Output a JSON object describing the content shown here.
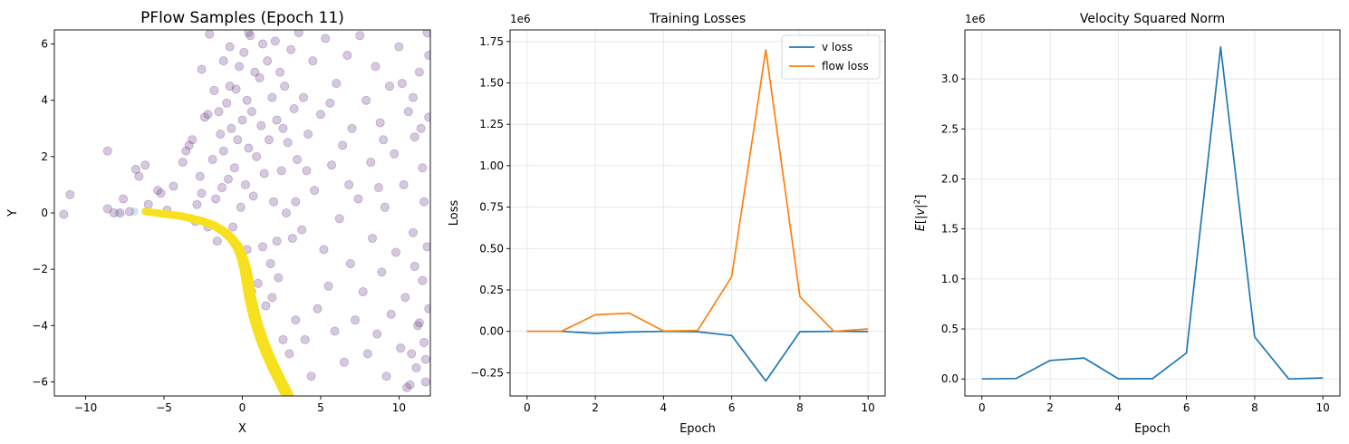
{
  "chart_data": [
    {
      "type": "scatter",
      "title": "PFlow Samples (Epoch 11)",
      "xlabel": "X",
      "ylabel": "Y",
      "xlim": [
        -12,
        12
      ],
      "ylim": [
        -6.5,
        6.5
      ],
      "xticks": [
        -10,
        -5,
        0,
        5,
        10
      ],
      "xtick_labels": [
        "−10",
        "−5",
        "0",
        "5",
        "10"
      ],
      "yticks": [
        -6,
        -4,
        -2,
        0,
        2,
        4,
        6
      ],
      "ytick_labels": [
        "−6",
        "−4",
        "−2",
        "0",
        "2",
        "4",
        "6"
      ],
      "grid": false,
      "colors": {
        "samples": "#6a3d8a",
        "trajectory": "#f7e01f",
        "early": "#8ea6c6"
      },
      "trajectory_points": [
        [
          -6.2,
          0.05
        ],
        [
          -5.5,
          0.0
        ],
        [
          -4.8,
          -0.05
        ],
        [
          -4.0,
          -0.1
        ],
        [
          -3.2,
          -0.2
        ],
        [
          -2.5,
          -0.3
        ],
        [
          -1.8,
          -0.45
        ],
        [
          -1.2,
          -0.65
        ],
        [
          -0.7,
          -0.9
        ],
        [
          -0.3,
          -1.2
        ],
        [
          0.0,
          -1.6
        ],
        [
          0.2,
          -2.0
        ],
        [
          0.35,
          -2.5
        ],
        [
          0.5,
          -3.0
        ],
        [
          0.7,
          -3.5
        ],
        [
          0.95,
          -4.0
        ],
        [
          1.25,
          -4.5
        ],
        [
          1.6,
          -5.0
        ],
        [
          2.0,
          -5.5
        ],
        [
          2.45,
          -6.0
        ],
        [
          2.9,
          -6.5
        ],
        [
          3.3,
          -7.0
        ]
      ],
      "scatter_points": [
        [
          -11.4,
          -0.05
        ],
        [
          -11.0,
          0.65
        ],
        [
          -8.6,
          0.15
        ],
        [
          -8.6,
          2.2
        ],
        [
          -8.2,
          0.0
        ],
        [
          -7.8,
          0.0
        ],
        [
          -7.6,
          0.5
        ],
        [
          -7.2,
          0.05
        ],
        [
          -6.8,
          1.55
        ],
        [
          -6.6,
          1.3
        ],
        [
          -6.2,
          1.7
        ],
        [
          -6.0,
          0.3
        ],
        [
          -5.4,
          0.8
        ],
        [
          -5.2,
          0.7
        ],
        [
          -4.8,
          0.1
        ],
        [
          -4.4,
          0.95
        ],
        [
          -3.8,
          1.8
        ],
        [
          -3.6,
          2.2
        ],
        [
          -3.4,
          2.4
        ],
        [
          -3.2,
          2.6
        ],
        [
          -2.9,
          0.3
        ],
        [
          -2.7,
          1.3
        ],
        [
          -2.6,
          0.7
        ],
        [
          -2.4,
          3.4
        ],
        [
          -2.2,
          3.5
        ],
        [
          -2.1,
          6.35
        ],
        [
          -1.9,
          1.9
        ],
        [
          -1.8,
          4.35
        ],
        [
          -1.7,
          0.5
        ],
        [
          -1.5,
          3.6
        ],
        [
          -1.4,
          2.8
        ],
        [
          -1.3,
          0.9
        ],
        [
          -1.2,
          2.2
        ],
        [
          -1.0,
          3.9
        ],
        [
          -0.9,
          1.2
        ],
        [
          -0.8,
          4.5
        ],
        [
          -0.7,
          3.0
        ],
        [
          -0.6,
          -0.5
        ],
        [
          -0.5,
          1.6
        ],
        [
          -0.4,
          4.4
        ],
        [
          -0.3,
          2.6
        ],
        [
          -0.2,
          5.2
        ],
        [
          -0.1,
          0.2
        ],
        [
          0.0,
          3.3
        ],
        [
          0.1,
          5.7
        ],
        [
          0.2,
          1.0
        ],
        [
          0.3,
          4.0
        ],
        [
          0.4,
          2.3
        ],
        [
          0.5,
          6.3
        ],
        [
          0.6,
          3.6
        ],
        [
          0.7,
          0.6
        ],
        [
          0.8,
          5.0
        ],
        [
          0.9,
          2.0
        ],
        [
          1.0,
          -2.5
        ],
        [
          1.1,
          4.8
        ],
        [
          1.2,
          3.1
        ],
        [
          1.3,
          6.0
        ],
        [
          1.4,
          1.4
        ],
        [
          1.5,
          -3.3
        ],
        [
          1.6,
          5.4
        ],
        [
          1.7,
          2.6
        ],
        [
          1.8,
          -1.8
        ],
        [
          1.9,
          4.1
        ],
        [
          2.0,
          0.4
        ],
        [
          2.1,
          6.1
        ],
        [
          2.2,
          3.3
        ],
        [
          2.3,
          -2.3
        ],
        [
          2.4,
          5.0
        ],
        [
          2.5,
          1.5
        ],
        [
          2.6,
          -4.5
        ],
        [
          2.7,
          4.5
        ],
        [
          2.8,
          0.0
        ],
        [
          2.9,
          2.5
        ],
        [
          3.0,
          -5.0
        ],
        [
          3.1,
          5.8
        ],
        [
          3.2,
          -0.9
        ],
        [
          3.3,
          3.7
        ],
        [
          3.4,
          -3.8
        ],
        [
          3.5,
          1.9
        ],
        [
          3.6,
          6.4
        ],
        [
          3.8,
          -0.6
        ],
        [
          3.9,
          4.1
        ],
        [
          4.0,
          -4.5
        ],
        [
          4.2,
          2.8
        ],
        [
          4.4,
          -5.8
        ],
        [
          4.5,
          5.4
        ],
        [
          4.6,
          0.8
        ],
        [
          4.8,
          -3.4
        ],
        [
          5.0,
          3.5
        ],
        [
          5.2,
          -1.3
        ],
        [
          5.3,
          6.2
        ],
        [
          5.5,
          -2.6
        ],
        [
          5.7,
          1.7
        ],
        [
          5.9,
          -4.2
        ],
        [
          6.0,
          4.6
        ],
        [
          6.2,
          -0.2
        ],
        [
          6.4,
          2.4
        ],
        [
          6.5,
          -5.3
        ],
        [
          6.7,
          5.6
        ],
        [
          6.9,
          -1.8
        ],
        [
          7.0,
          3.0
        ],
        [
          7.2,
          -3.8
        ],
        [
          7.4,
          0.5
        ],
        [
          7.5,
          6.3
        ],
        [
          7.7,
          -2.8
        ],
        [
          7.9,
          4.0
        ],
        [
          8.0,
          -5.0
        ],
        [
          8.2,
          1.8
        ],
        [
          8.3,
          -0.9
        ],
        [
          8.5,
          5.2
        ],
        [
          8.6,
          -4.3
        ],
        [
          8.8,
          3.2
        ],
        [
          8.9,
          -2.1
        ],
        [
          9.1,
          0.2
        ],
        [
          9.2,
          -5.8
        ],
        [
          9.4,
          4.5
        ],
        [
          9.5,
          -3.6
        ],
        [
          9.7,
          2.1
        ],
        [
          9.8,
          -1.4
        ],
        [
          10.0,
          5.9
        ],
        [
          10.1,
          -4.8
        ],
        [
          10.3,
          1.0
        ],
        [
          10.4,
          -3.0
        ],
        [
          10.6,
          3.6
        ],
        [
          10.7,
          -6.1
        ],
        [
          10.9,
          -0.7
        ],
        [
          11.0,
          2.7
        ],
        [
          11.2,
          -4.0
        ],
        [
          11.3,
          5.0
        ],
        [
          11.5,
          -2.4
        ],
        [
          11.6,
          0.4
        ],
        [
          11.7,
          -5.2
        ],
        [
          11.8,
          6.4
        ],
        [
          11.9,
          -3.4
        ],
        [
          11.3,
          -3.9
        ],
        [
          11.6,
          -4.6
        ],
        [
          11.1,
          -5.5
        ],
        [
          11.8,
          -1.2
        ],
        [
          10.8,
          -5.0
        ],
        [
          11.5,
          1.6
        ],
        [
          11.9,
          3.4
        ],
        [
          10.5,
          -6.2
        ],
        [
          11.0,
          -1.9
        ],
        [
          11.7,
          -6.0
        ],
        [
          -3.0,
          -0.3
        ],
        [
          -2.2,
          -0.5
        ],
        [
          -1.6,
          -1.0
        ],
        [
          -0.9,
          -0.8
        ],
        [
          0.3,
          -1.3
        ],
        [
          0.6,
          -2.8
        ],
        [
          1.3,
          -1.2
        ],
        [
          1.9,
          -3.0
        ],
        [
          2.2,
          -1.0
        ],
        [
          -0.8,
          5.9
        ],
        [
          0.4,
          6.4
        ],
        [
          -2.6,
          5.1
        ],
        [
          -1.2,
          5.4
        ],
        [
          2.6,
          3.0
        ],
        [
          3.4,
          0.4
        ],
        [
          4.1,
          1.5
        ],
        [
          5.6,
          3.9
        ],
        [
          6.8,
          1.0
        ],
        [
          8.7,
          0.9
        ],
        [
          9.0,
          2.6
        ],
        [
          10.2,
          4.6
        ],
        [
          10.9,
          4.1
        ],
        [
          11.4,
          3.0
        ],
        [
          11.9,
          5.6
        ]
      ]
    },
    {
      "type": "line",
      "title": "Training Losses",
      "xlabel": "Epoch",
      "ylabel": "Loss",
      "scale_label": "1e6",
      "x": [
        0,
        1,
        2,
        3,
        4,
        5,
        6,
        7,
        8,
        9,
        10
      ],
      "series": [
        {
          "name": "v loss",
          "color": "#1f77b4",
          "values": [
            0.0,
            0.0,
            -0.012,
            -0.004,
            0.0,
            -0.002,
            -0.025,
            -0.3,
            -0.002,
            0.0,
            -0.001
          ]
        },
        {
          "name": "flow loss",
          "color": "#ff7f0e",
          "values": [
            0.0,
            0.0,
            0.1,
            0.11,
            0.002,
            0.005,
            0.33,
            1.7,
            0.21,
            0.0,
            0.015
          ]
        }
      ],
      "xlim": [
        -0.5,
        10.5
      ],
      "ylim": [
        -0.39,
        1.82
      ],
      "xticks": [
        0,
        2,
        4,
        6,
        8,
        10
      ],
      "xtick_labels": [
        "0",
        "2",
        "4",
        "6",
        "8",
        "10"
      ],
      "yticks": [
        -0.25,
        0.0,
        0.25,
        0.5,
        0.75,
        1.0,
        1.25,
        1.5,
        1.75
      ],
      "ytick_labels": [
        "−0.25",
        "0.00",
        "0.25",
        "0.50",
        "0.75",
        "1.00",
        "1.25",
        "1.50",
        "1.75"
      ],
      "grid": true,
      "legend": "top-right"
    },
    {
      "type": "line",
      "title": "Velocity Squared Norm",
      "xlabel": "Epoch",
      "ylabel_parts": [
        "E",
        "[",
        "|v|",
        "2",
        "]"
      ],
      "scale_label": "1e6",
      "x": [
        0,
        1,
        2,
        3,
        4,
        5,
        6,
        7,
        8,
        9,
        10
      ],
      "series": [
        {
          "color": "#1f77b4",
          "values": [
            0.0,
            0.005,
            0.185,
            0.21,
            0.002,
            0.003,
            0.26,
            3.32,
            0.42,
            0.0,
            0.01
          ]
        }
      ],
      "xlim": [
        -0.5,
        10.5
      ],
      "ylim": [
        -0.17,
        3.49
      ],
      "xticks": [
        0,
        2,
        4,
        6,
        8,
        10
      ],
      "xtick_labels": [
        "0",
        "2",
        "4",
        "6",
        "8",
        "10"
      ],
      "yticks": [
        0.0,
        0.5,
        1.0,
        1.5,
        2.0,
        2.5,
        3.0
      ],
      "ytick_labels": [
        "0.0",
        "0.5",
        "1.0",
        "1.5",
        "2.0",
        "2.5",
        "3.0"
      ],
      "grid": true
    }
  ]
}
